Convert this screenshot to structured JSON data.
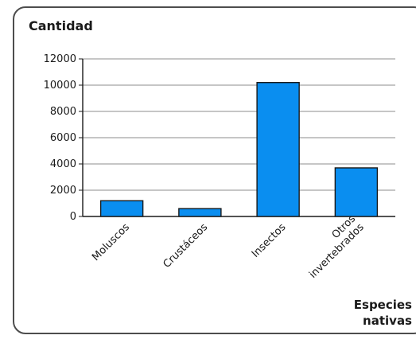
{
  "chart_data": {
    "type": "bar",
    "ylabel": "Cantidad",
    "xlabel_lines": [
      "Especies",
      "nativas"
    ],
    "categories": [
      [
        "Moluscos"
      ],
      [
        "Crustáceos"
      ],
      [
        "Insectos"
      ],
      [
        "Otros",
        "invertebrados"
      ]
    ],
    "values": [
      1200,
      600,
      10200,
      3700
    ],
    "ylim": [
      0,
      12000
    ],
    "yticks": [
      0,
      2000,
      4000,
      6000,
      8000,
      10000,
      12000
    ],
    "grid": true,
    "legend": "none"
  },
  "colors": {
    "bar_fill": "#0a8ef0",
    "bar_stroke": "#1a1a1a",
    "grid": "#8c8c8c",
    "axis": "#1a1a1a",
    "frame": "#4d4d4d"
  }
}
